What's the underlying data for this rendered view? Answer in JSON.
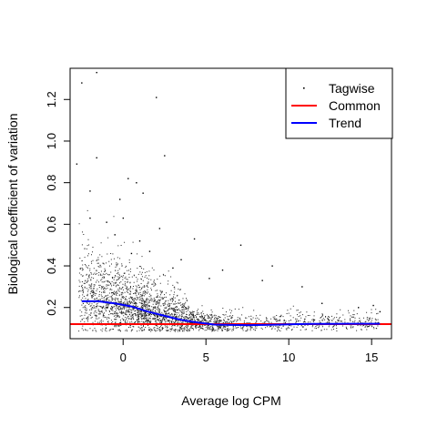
{
  "chart_data": {
    "type": "scatter",
    "title": "",
    "xlabel": "Average log CPM",
    "ylabel": "Biological coefficient of variation",
    "xlim": [
      -3.2,
      16.2
    ],
    "ylim": [
      0.05,
      1.35
    ],
    "x_ticks": [
      0,
      5,
      10,
      15
    ],
    "y_ticks": [
      0.2,
      0.4,
      0.6,
      0.8,
      1.0,
      1.2
    ],
    "x_tick_labels": [
      "0",
      "5",
      "10",
      "15"
    ],
    "y_tick_labels": [
      "0.2",
      "0.4",
      "0.6",
      "0.8",
      "1.0",
      "1.2"
    ],
    "grid": false,
    "legend_position": "top-right",
    "legend": [
      {
        "label": "Tagwise",
        "kind": "point",
        "color": "#000000"
      },
      {
        "label": "Common",
        "kind": "line",
        "color": "#ff0000"
      },
      {
        "label": "Trend",
        "kind": "line",
        "color": "#0000ff"
      }
    ],
    "series": [
      {
        "name": "Tagwise",
        "kind": "scatter",
        "color": "#000000",
        "description_of_cloud": "dense band of ~15000 points, roughly 0.12-0.35 at low CPM narrowing to 0.09-0.16 above 5",
        "points": [
          [
            -2.5,
            1.28
          ],
          [
            -1.6,
            1.33
          ],
          [
            2.0,
            1.21
          ],
          [
            2.5,
            0.93
          ],
          [
            -2.8,
            0.89
          ],
          [
            -1.6,
            0.92
          ],
          [
            0.3,
            0.82
          ],
          [
            0.8,
            0.8
          ],
          [
            1.2,
            0.75
          ],
          [
            -2.0,
            0.76
          ],
          [
            -0.2,
            0.72
          ],
          [
            0.0,
            0.63
          ],
          [
            -1.0,
            0.61
          ],
          [
            -2.0,
            0.63
          ],
          [
            4.3,
            0.53
          ],
          [
            7.1,
            0.5
          ],
          [
            2.2,
            0.58
          ],
          [
            1.0,
            0.52
          ],
          [
            0.5,
            0.46
          ],
          [
            3.5,
            0.43
          ],
          [
            9.0,
            0.4
          ],
          [
            6.0,
            0.38
          ],
          [
            10.8,
            0.3
          ],
          [
            12.0,
            0.22
          ],
          [
            14.2,
            0.2
          ],
          [
            15.1,
            0.21
          ],
          [
            15.5,
            0.18
          ],
          [
            8.4,
            0.33
          ],
          [
            5.2,
            0.34
          ],
          [
            3.0,
            0.39
          ],
          [
            -0.5,
            0.55
          ],
          [
            1.6,
            0.47
          ]
        ]
      },
      {
        "name": "Common",
        "kind": "hline",
        "color": "#ff0000",
        "y": 0.12
      },
      {
        "name": "Trend",
        "kind": "line",
        "color": "#0000ff",
        "x": [
          -2.5,
          -1.5,
          -0.5,
          0.5,
          1.5,
          2.5,
          3.5,
          4.5,
          5.5,
          6.5,
          7.5,
          8.5,
          9.5,
          10.5,
          11.5,
          12.5,
          13.5,
          14.5,
          15.5
        ],
        "y": [
          0.23,
          0.23,
          0.22,
          0.205,
          0.18,
          0.16,
          0.14,
          0.128,
          0.118,
          0.116,
          0.115,
          0.116,
          0.118,
          0.12,
          0.121,
          0.121,
          0.122,
          0.122,
          0.122
        ]
      }
    ]
  }
}
